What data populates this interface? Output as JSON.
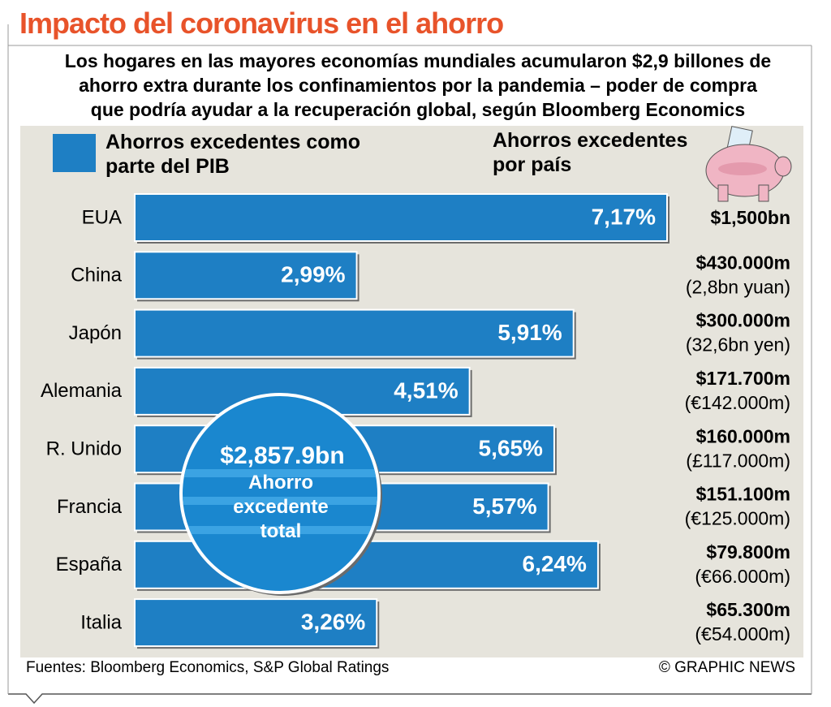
{
  "chart_data": {
    "type": "bar",
    "title": "Impacto del coronavirus en el ahorro",
    "subtitle": [
      "Los hogares en las mayores economías mundiales acumularon $2,9 billones de",
      "ahorro extra durante los confinamientos por la pandemia – poder de compra",
      "que podría ayudar a la recuperación global, según Bloomberg Economics"
    ],
    "categories": [
      "EUA",
      "China",
      "Japón",
      "Alemania",
      "R. Unido",
      "Francia",
      "España",
      "Italia"
    ],
    "series": [
      {
        "name": "Ahorros excedentes como parte del PIB",
        "color": "#1e7fc4",
        "values": [
          7.17,
          2.99,
          5.91,
          4.51,
          5.65,
          5.57,
          6.24,
          3.26
        ],
        "value_labels": [
          "7,17%",
          "2,99%",
          "5,91%",
          "4,51%",
          "5,65%",
          "5,57%",
          "6,24%",
          "3,26%"
        ]
      }
    ],
    "country_header": "Ahorros excedentes por país",
    "country_savings": [
      {
        "usd": "$1,500bn"
      },
      {
        "usd": "$430.000m",
        "local": "(2,8bn yuan)"
      },
      {
        "usd": "$300.000m",
        "local": "(32,6bn yen)"
      },
      {
        "usd": "$171.700m",
        "local": "(€142.000m)"
      },
      {
        "usd": "$160.000m",
        "local": "(£117.000m)"
      },
      {
        "usd": "$151.100m",
        "local": "(€125.000m)"
      },
      {
        "usd": "$79.800m",
        "local": "(€66.000m)"
      },
      {
        "usd": "$65.300m",
        "local": "(€54.000m)"
      }
    ],
    "total": {
      "value": "$2,857.9bn",
      "label": "Ahorro excedente total"
    },
    "source": "Fuentes: Bloomberg Economics, S&P Global Ratings",
    "credit": "© GRAPHIC NEWS"
  }
}
